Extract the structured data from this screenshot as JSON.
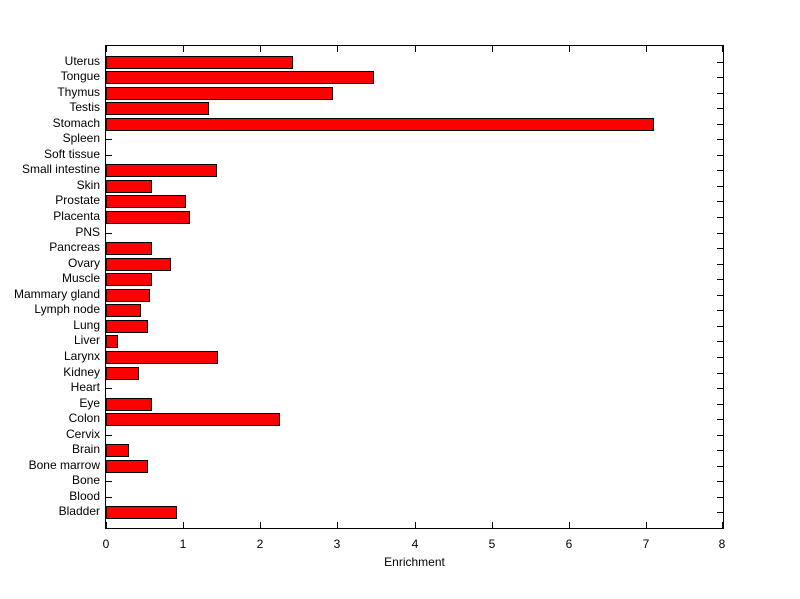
{
  "chart_data": {
    "type": "bar",
    "orientation": "horizontal",
    "title": "",
    "xlabel": "Enrichment",
    "ylabel": "",
    "xlim": [
      0,
      8
    ],
    "xticks": [
      0,
      1,
      2,
      3,
      4,
      5,
      6,
      7,
      8
    ],
    "grid": false,
    "bar_color": "#ff0000",
    "bar_edge_color": "#000000",
    "axis_color": "#000000",
    "background_color": "#ffffff",
    "categories": [
      "Uterus",
      "Tongue",
      "Thymus",
      "Testis",
      "Stomach",
      "Spleen",
      "Soft tissue",
      "Small intestine",
      "Skin",
      "Prostate",
      "Placenta",
      "PNS",
      "Pancreas",
      "Ovary",
      "Muscle",
      "Mammary gland",
      "Lymph node",
      "Lung",
      "Liver",
      "Larynx",
      "Kidney",
      "Heart",
      "Eye",
      "Colon",
      "Cervix",
      "Brain",
      "Bone marrow",
      "Bone",
      "Blood",
      "Bladder"
    ],
    "values": [
      2.43,
      3.48,
      2.94,
      1.33,
      7.1,
      0,
      0,
      1.44,
      0.6,
      1.04,
      1.09,
      0,
      0.6,
      0.84,
      0.59,
      0.57,
      0.46,
      0.55,
      0.15,
      1.45,
      0.43,
      0,
      0.6,
      2.26,
      0,
      0.3,
      0.54,
      0,
      0,
      0.92
    ]
  }
}
